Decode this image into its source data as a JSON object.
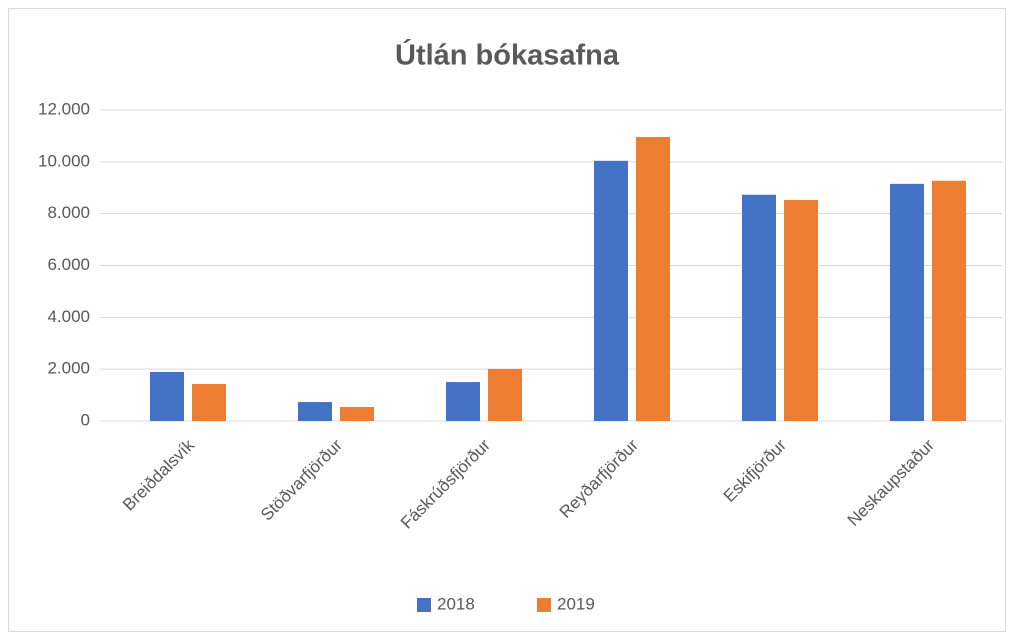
{
  "chart_data": {
    "type": "bar",
    "title": "Útlán bókasafna",
    "categories": [
      "Breiðdalsvík",
      "Stöðvarfjörður",
      "Fáskrúðsfjörður",
      "Reyðarfjörður",
      "Eskifjörður",
      "Neskaupstaður"
    ],
    "series": [
      {
        "name": "2018",
        "color": "#4472c4",
        "values": [
          1890,
          730,
          1500,
          10040,
          8730,
          9150
        ]
      },
      {
        "name": "2019",
        "color": "#ed7d31",
        "values": [
          1430,
          540,
          2010,
          10960,
          8530,
          9270
        ]
      }
    ],
    "ylim": [
      0,
      12000
    ],
    "yticks": [
      0,
      {
        "value": 2000,
        "label": "2.000"
      },
      {
        "value": 4000,
        "label": "4.000"
      },
      {
        "value": 6000,
        "label": "6.000"
      },
      {
        "value": 8000,
        "label": "8.000"
      },
      {
        "value": 10000,
        "label": "10.000"
      },
      {
        "value": 12000,
        "label": "12.000"
      }
    ],
    "grid": true,
    "legend": "bottom"
  }
}
